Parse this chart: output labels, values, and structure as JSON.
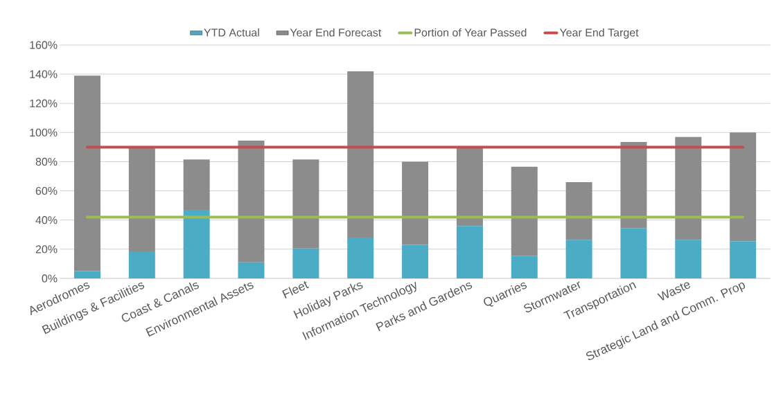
{
  "chart_data": {
    "type": "bar",
    "stacked": true,
    "grid": "y",
    "legend": "top",
    "categories": [
      "Aerodromes",
      "Buildings & Facilities",
      "Coast & Canals",
      "Environmental Assets",
      "Fleet",
      "Holiday Parks",
      "Information Technology",
      "Parks and Gardens",
      "Quarries",
      "Stormwater",
      "Transportation",
      "Waste",
      "Strategic Land and Comm. Prop"
    ],
    "series": [
      {
        "name": "YTD Actual",
        "color": "#4bacc6",
        "values": [
          5,
          18.5,
          47,
          11,
          20.5,
          28,
          23,
          36,
          15.5,
          26.5,
          34.5,
          26.5,
          25.5
        ]
      },
      {
        "name": "Year End Forecast",
        "color": "#8c8c8c",
        "values": [
          134,
          71.5,
          34.5,
          83.5,
          61,
          114,
          57,
          54,
          61,
          39.5,
          59,
          70.5,
          74.5
        ]
      }
    ],
    "ref_lines": [
      {
        "axis": "y",
        "value": 42,
        "label": "Portion of Year Passed",
        "color": "#9bbb59"
      },
      {
        "axis": "y",
        "value": 90,
        "label": "Year End Target",
        "color": "#c0504d"
      }
    ],
    "ylim": [
      0,
      160
    ],
    "yticks": [
      {
        "value": 0,
        "label": "0%"
      },
      {
        "value": 20,
        "label": "20%"
      },
      {
        "value": 40,
        "label": "40%"
      },
      {
        "value": 60,
        "label": "60%"
      },
      {
        "value": 80,
        "label": "80%"
      },
      {
        "value": 100,
        "label": "100%"
      },
      {
        "value": 120,
        "label": "120%"
      },
      {
        "value": 140,
        "label": "140%"
      },
      {
        "value": 160,
        "label": "160%"
      }
    ]
  }
}
